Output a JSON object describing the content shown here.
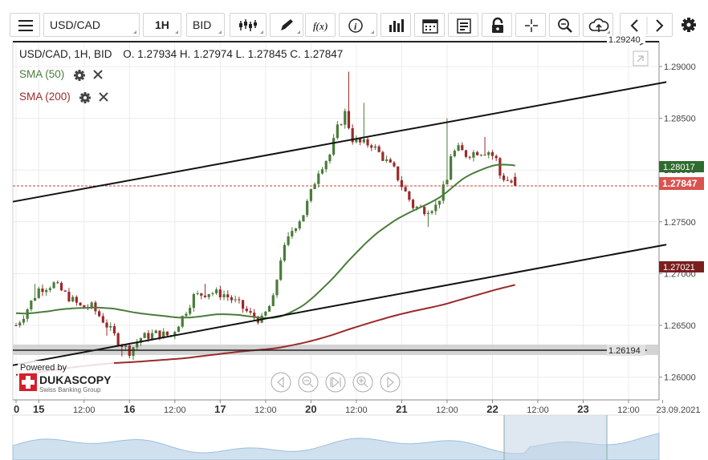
{
  "toolbar": {
    "symbol": "USD/CAD",
    "timeframe": "1H",
    "price_side": "BID",
    "fx_label": "f(x)",
    "icons": [
      "menu-icon",
      "candlestick-icon",
      "pencil-icon",
      "function-icon",
      "info-icon",
      "bar-chart-icon",
      "calendar-icon",
      "list-icon",
      "lock-icon",
      "crosshair-icon",
      "zoom-icon",
      "cloud-upload-icon",
      "chevron-left-icon",
      "chevron-right-icon",
      "gear-icon"
    ]
  },
  "header": {
    "title": "USD/CAD, 1H, BID",
    "ohlc": "O. 1.27934 H. 1.27974 L. 1.27845 C. 1.27847"
  },
  "indicators": [
    {
      "label": "SMA (50)",
      "color": "#4a7c3a"
    },
    {
      "label": "SMA (200)",
      "color": "#9b2a2a"
    }
  ],
  "branding": {
    "powered_by": "Powered by",
    "name": "DUKASCOPY",
    "tagline": "Swiss Banking Group"
  },
  "chart_data": {
    "type": "candlestick",
    "title": "USD/CAD, 1H, BID",
    "y_ticks": [
      "1.29000",
      "1.28500",
      "1.28000",
      "1.27500",
      "1.27000",
      "1.26500",
      "1.26000"
    ],
    "ylim": [
      1.2578,
      1.2924
    ],
    "x_ticks": [
      {
        "label": "0",
        "bold": true,
        "t": 0
      },
      {
        "label": "15",
        "bold": true,
        "t": 6
      },
      {
        "label": "12:00",
        "bold": false,
        "t": 18
      },
      {
        "label": "16",
        "bold": true,
        "t": 30
      },
      {
        "label": "12:00",
        "bold": false,
        "t": 42
      },
      {
        "label": "17",
        "bold": true,
        "t": 54
      },
      {
        "label": "12:00",
        "bold": false,
        "t": 66
      },
      {
        "label": "20",
        "bold": true,
        "t": 78
      },
      {
        "label": "12:00",
        "bold": false,
        "t": 90
      },
      {
        "label": "21",
        "bold": true,
        "t": 102
      },
      {
        "label": "12:00",
        "bold": false,
        "t": 114
      },
      {
        "label": "22",
        "bold": true,
        "t": 126
      },
      {
        "label": "12:00",
        "bold": false,
        "t": 138
      },
      {
        "label": "23",
        "bold": true,
        "t": 150
      },
      {
        "label": "12:00",
        "bold": false,
        "t": 162
      },
      {
        "label": "23.09.2021",
        "bold": false,
        "t": 171
      }
    ],
    "anchors": [
      [
        0,
        1.265
      ],
      [
        2,
        1.266
      ],
      [
        6,
        1.2685
      ],
      [
        10,
        1.269
      ],
      [
        13,
        1.268
      ],
      [
        17,
        1.2668
      ],
      [
        20,
        1.2668
      ],
      [
        23,
        1.2655
      ],
      [
        27,
        1.2635
      ],
      [
        30,
        1.2625
      ],
      [
        33,
        1.2638
      ],
      [
        37,
        1.2642
      ],
      [
        41,
        1.264
      ],
      [
        44,
        1.2658
      ],
      [
        47,
        1.2678
      ],
      [
        51,
        1.2682
      ],
      [
        55,
        1.268
      ],
      [
        59,
        1.267
      ],
      [
        62,
        1.266
      ],
      [
        65,
        1.2655
      ],
      [
        68,
        1.2675
      ],
      [
        70,
        1.2715
      ],
      [
        73,
        1.2742
      ],
      [
        76,
        1.2758
      ],
      [
        78,
        1.2778
      ],
      [
        80,
        1.28
      ],
      [
        83,
        1.2815
      ],
      [
        85,
        1.284
      ],
      [
        87,
        1.2855
      ],
      [
        89,
        1.283
      ],
      [
        91,
        1.2826
      ],
      [
        94,
        1.2825
      ],
      [
        97,
        1.2812
      ],
      [
        100,
        1.28
      ],
      [
        102,
        1.2785
      ],
      [
        105,
        1.2765
      ],
      [
        108,
        1.2762
      ],
      [
        111,
        1.2765
      ],
      [
        114,
        1.279
      ],
      [
        115,
        1.2815
      ],
      [
        117,
        1.282
      ],
      [
        119,
        1.2815
      ],
      [
        122,
        1.2818
      ],
      [
        125,
        1.2818
      ],
      [
        127,
        1.281
      ],
      [
        128,
        1.2795
      ],
      [
        130,
        1.279
      ],
      [
        132,
        1.2786
      ]
    ],
    "spikes": [
      [
        5,
        1.269
      ],
      [
        13,
        1.2685
      ],
      [
        24,
        1.264
      ],
      [
        28,
        1.262
      ],
      [
        37,
        1.2646
      ],
      [
        50,
        1.269
      ],
      [
        72,
        1.274
      ],
      [
        88,
        1.2895
      ],
      [
        92,
        1.2865
      ],
      [
        97,
        1.2815
      ],
      [
        109,
        1.2745
      ],
      [
        114,
        1.285
      ],
      [
        124,
        1.2832
      ]
    ],
    "last_candle": {
      "open": 1.27934,
      "high": 1.27974,
      "low": 1.27845,
      "close": 1.27847
    },
    "current_price": "1.27847",
    "sma50_value": "1.28017",
    "sma200_value": "1.27021",
    "upper_label": "1.29240",
    "support_label": "1.26194",
    "trendlines": [
      {
        "name": "upper-channel",
        "from": [
          0,
          1.277
        ],
        "to": [
          172,
          1.2885
        ]
      },
      {
        "name": "lower-channel",
        "from": [
          0,
          1.2612
        ],
        "to": [
          172,
          1.2728
        ]
      }
    ],
    "colors": {
      "up": "#4a7c3a",
      "down": "#9b2a2a",
      "sma50": "#4a7c3a",
      "sma200": "#9b2a2a",
      "price": "#c9413a"
    }
  }
}
